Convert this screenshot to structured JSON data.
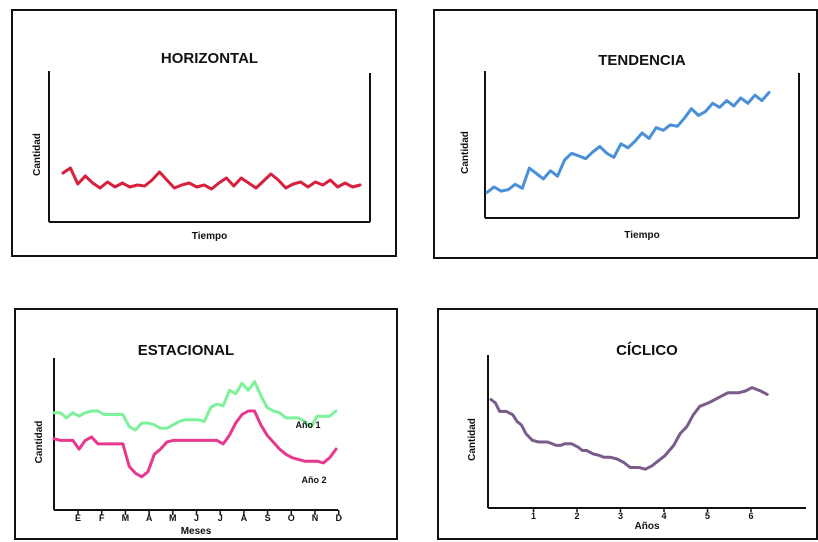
{
  "chart_data": [
    {
      "type": "line",
      "title": "HORIZONTAL",
      "xlabel": "Tiempo",
      "ylabel": "Cantidad",
      "ylim": [
        0,
        10
      ],
      "grid": false,
      "series": [
        {
          "color": "#d6203c",
          "x": [
            0,
            1,
            2,
            3,
            4,
            5,
            6,
            7,
            8,
            9,
            10,
            11,
            12,
            13,
            14,
            15,
            16,
            17,
            18,
            19,
            20,
            21,
            22,
            23,
            24,
            25,
            26,
            27,
            28,
            29,
            30,
            31,
            32,
            33,
            34,
            35,
            36,
            37,
            38,
            39,
            40
          ],
          "values": [
            4.3,
            4.8,
            3.2,
            4.0,
            3.3,
            2.8,
            3.4,
            2.9,
            3.3,
            2.9,
            3.1,
            3.0,
            3.6,
            4.4,
            3.6,
            2.8,
            3.1,
            3.3,
            2.9,
            3.1,
            2.7,
            3.3,
            3.8,
            3.0,
            3.8,
            3.3,
            2.8,
            3.5,
            4.2,
            3.6,
            2.8,
            3.2,
            3.4,
            2.9,
            3.4,
            3.1,
            3.6,
            2.9,
            3.3,
            2.9,
            3.1
          ]
        }
      ]
    },
    {
      "type": "line",
      "title": "TENDENCIA",
      "xlabel": "Tiempo",
      "ylabel": "Cantidad",
      "ylim": [
        0,
        10
      ],
      "grid": false,
      "series": [
        {
          "color": "#4a90d9",
          "x": [
            0,
            1,
            2,
            3,
            4,
            5,
            6,
            7,
            8,
            9,
            10,
            11,
            12,
            13,
            14,
            15,
            16,
            17,
            18,
            19,
            20,
            21,
            22,
            23,
            24,
            25,
            26,
            27,
            28,
            29,
            30,
            31,
            32,
            33,
            34,
            35,
            36,
            37,
            38,
            39,
            40
          ],
          "values": [
            1.6,
            2.0,
            1.7,
            1.8,
            2.2,
            1.9,
            3.4,
            3.0,
            2.6,
            3.2,
            2.8,
            4.0,
            4.5,
            4.3,
            4.1,
            4.6,
            5.0,
            4.5,
            4.2,
            5.2,
            4.9,
            5.4,
            6.0,
            5.6,
            6.4,
            6.2,
            6.6,
            6.5,
            7.1,
            7.8,
            7.3,
            7.6,
            8.2,
            7.9,
            8.4,
            8.0,
            8.6,
            8.2,
            8.8,
            8.4,
            9.0
          ]
        }
      ]
    },
    {
      "type": "line",
      "title": "ESTACIONAL",
      "xlabel": "Meses",
      "ylabel": "Cantidad",
      "categories": [
        "E",
        "F",
        "M",
        "A",
        "M",
        "J",
        "J",
        "A",
        "S",
        "O",
        "N",
        "D"
      ],
      "ylim": [
        0,
        10
      ],
      "grid": false,
      "series": [
        {
          "name": "Año 1",
          "color": "#7df29a",
          "x": [
            0,
            0.25,
            0.5,
            0.75,
            1,
            1.25,
            1.5,
            1.75,
            2,
            2.25,
            2.5,
            2.75,
            3,
            3.25,
            3.5,
            3.75,
            4,
            4.25,
            4.5,
            4.75,
            5,
            5.25,
            5.5,
            5.75,
            6,
            6.25,
            6.5,
            6.75,
            7,
            7.25,
            7.5,
            7.75,
            8,
            8.25,
            8.5,
            8.75,
            9,
            9.25,
            9.5,
            9.75,
            10,
            10.25,
            10.5,
            10.75,
            11,
            11.25
          ],
          "values": [
            6.2,
            6.2,
            5.9,
            6.2,
            6.0,
            6.2,
            6.3,
            6.3,
            6.1,
            6.1,
            6.1,
            6.1,
            5.4,
            5.2,
            5.6,
            5.6,
            5.5,
            5.3,
            5.3,
            5.5,
            5.7,
            5.8,
            5.8,
            5.8,
            5.7,
            6.5,
            6.7,
            6.6,
            7.5,
            7.3,
            7.9,
            7.5,
            8.0,
            7.2,
            6.5,
            6.3,
            6.2,
            5.9,
            5.9,
            5.9,
            5.7,
            5.4,
            6.0,
            6.0,
            6.0,
            6.3
          ]
        },
        {
          "name": "Año 2",
          "color": "#e8378f",
          "x": [
            0,
            0.25,
            0.5,
            0.75,
            1,
            1.25,
            1.5,
            1.75,
            2,
            2.25,
            2.5,
            2.75,
            3,
            3.25,
            3.5,
            3.75,
            4,
            4.25,
            4.5,
            4.75,
            5,
            5.25,
            5.5,
            5.75,
            6,
            6.25,
            6.5,
            6.75,
            7,
            7.25,
            7.5,
            7.75,
            8,
            8.25,
            8.5,
            8.75,
            9,
            9.25,
            9.5,
            9.75,
            10,
            10.25,
            10.5,
            10.75,
            11,
            11.25
          ],
          "values": [
            4.7,
            4.6,
            4.6,
            4.6,
            4.1,
            4.6,
            4.8,
            4.4,
            4.4,
            4.4,
            4.4,
            4.4,
            3.1,
            2.7,
            2.5,
            2.8,
            3.8,
            4.1,
            4.5,
            4.6,
            4.6,
            4.6,
            4.6,
            4.6,
            4.6,
            4.6,
            4.6,
            4.4,
            4.9,
            5.6,
            6.1,
            6.3,
            6.3,
            5.5,
            4.9,
            4.5,
            4.1,
            3.8,
            3.6,
            3.5,
            3.4,
            3.4,
            3.4,
            3.3,
            3.6,
            4.1
          ]
        }
      ]
    },
    {
      "type": "line",
      "title": "CÍCLICO",
      "xlabel": "Años",
      "ylabel": "Cantidad",
      "xticks": [
        "1",
        "2",
        "3",
        "4",
        "5",
        "6"
      ],
      "xlim": [
        0,
        7
      ],
      "ylim": [
        0,
        10
      ],
      "grid": false,
      "series": [
        {
          "color": "#7a5c8c",
          "x": [
            0,
            0.1,
            0.2,
            0.35,
            0.5,
            0.6,
            0.7,
            0.8,
            0.95,
            1.1,
            1.3,
            1.5,
            1.6,
            1.7,
            1.85,
            2.0,
            2.1,
            2.2,
            2.35,
            2.5,
            2.6,
            2.75,
            2.9,
            3.05,
            3.2,
            3.4,
            3.55,
            3.7,
            3.85,
            4.0,
            4.1,
            4.2,
            4.35,
            4.5,
            4.65,
            4.8,
            5.0,
            5.15,
            5.3,
            5.45,
            5.6,
            5.7,
            5.85,
            6.0,
            6.2,
            6.35
          ],
          "values": [
            6.5,
            6.3,
            5.8,
            5.8,
            5.6,
            5.2,
            5.0,
            4.5,
            4.1,
            4.0,
            4.0,
            3.8,
            3.8,
            3.9,
            3.9,
            3.7,
            3.5,
            3.5,
            3.3,
            3.2,
            3.1,
            3.1,
            3.0,
            2.8,
            2.5,
            2.5,
            2.4,
            2.6,
            2.9,
            3.2,
            3.5,
            3.8,
            4.5,
            4.9,
            5.6,
            6.1,
            6.3,
            6.5,
            6.7,
            6.9,
            6.9,
            6.9,
            7.0,
            7.2,
            7.0,
            6.8
          ]
        }
      ]
    }
  ]
}
